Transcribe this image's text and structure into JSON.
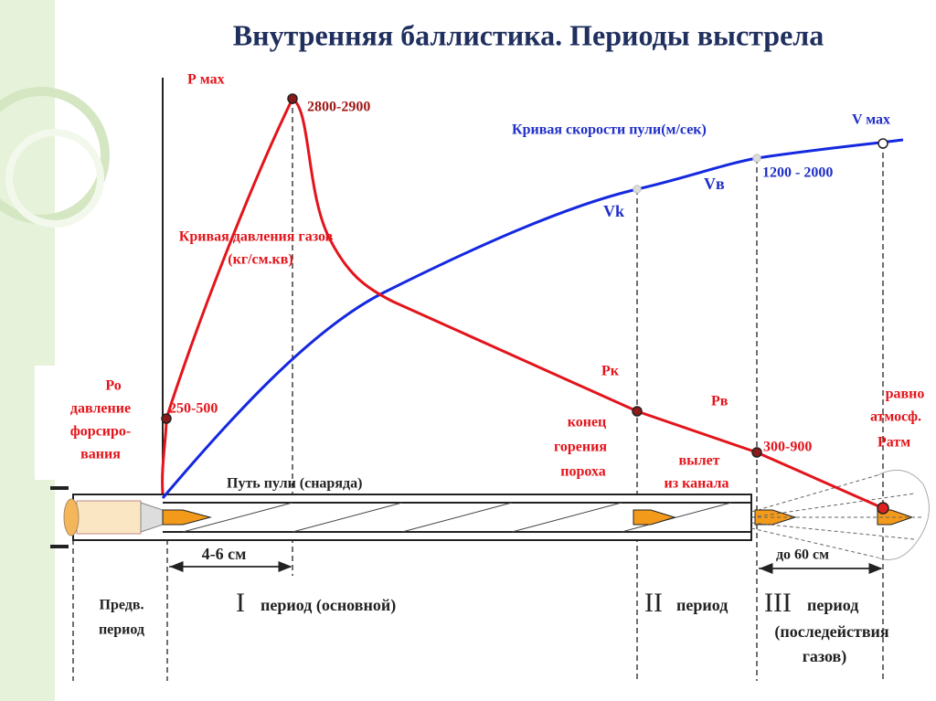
{
  "header": {
    "title": "Внутренняя баллистика. Периоды выстрела"
  },
  "pressure_curve": {
    "label": [
      "Кривая давления газов",
      "(кг/см.кв)"
    ],
    "p_max": "Р мах",
    "p_max_value": "2800-2900",
    "p0": [
      "Ро",
      "давление",
      "форсиро-",
      "вания"
    ],
    "p0_value": "250-500",
    "pk": "Рк",
    "pv": "Рв",
    "pv_value": "300-900",
    "patm_note": [
      "равно",
      "атмосф."
    ],
    "patm": "Ратм"
  },
  "velocity_curve": {
    "label": "Кривая скорости пули(м/сек)",
    "v_max": "V мах",
    "vv": "Vв",
    "vv_value": "1200 - 2000",
    "vk": "Vk"
  },
  "barrel": {
    "path_label": "Путь пули (снаряда)",
    "powder_end": [
      "конец",
      "горения",
      "пороха"
    ],
    "exit": [
      "вылет",
      "из канала"
    ],
    "dist_1": "4-6 см",
    "dist_2": "до 60 см"
  },
  "periods": {
    "preliminary": [
      "Предв.",
      "период"
    ],
    "first": {
      "numeral": "I",
      "text": "период  (основной)"
    },
    "second": {
      "numeral": "II",
      "text": "период"
    },
    "third": {
      "numeral": "III",
      "text": "период",
      "note": [
        "(последействия",
        "газов)"
      ]
    }
  }
}
